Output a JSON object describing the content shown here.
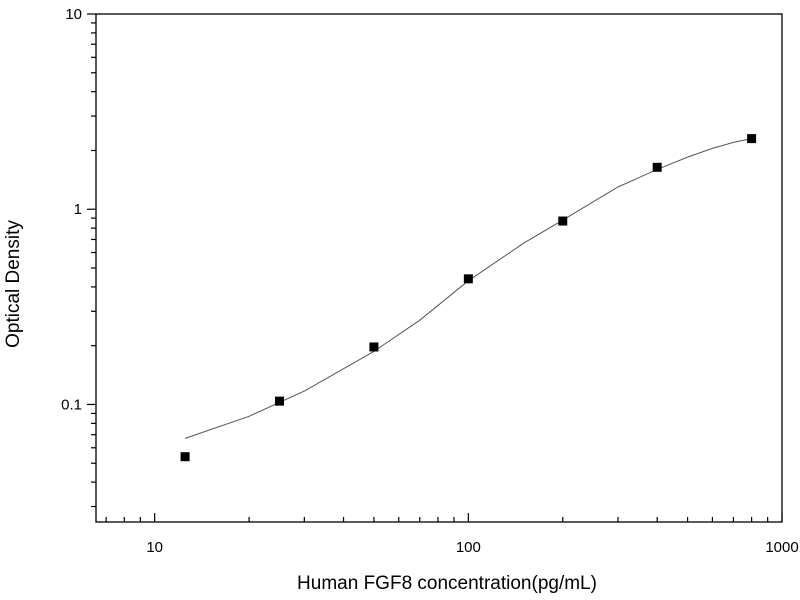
{
  "chart_data": {
    "type": "scatter",
    "title": "",
    "xlabel": "Human FGF8 concentration(pg/mL)",
    "ylabel": "Optical Density",
    "x_scale": "log",
    "y_scale": "log",
    "xlim": [
      6.5,
      1000
    ],
    "ylim": [
      0.025,
      10
    ],
    "grid": false,
    "legend": "none",
    "x_ticks": [
      {
        "value": 10,
        "label": "10"
      },
      {
        "value": 100,
        "label": "100"
      },
      {
        "value": 1000,
        "label": "1000"
      }
    ],
    "y_ticks": [
      {
        "value": 0.1,
        "label": "0.1"
      },
      {
        "value": 1,
        "label": "1"
      },
      {
        "value": 10,
        "label": "10"
      }
    ],
    "series": [
      {
        "marker": "square",
        "color": "#000000",
        "points": [
          {
            "x": 12.5,
            "y": 0.054
          },
          {
            "x": 25,
            "y": 0.104
          },
          {
            "x": 50,
            "y": 0.197
          },
          {
            "x": 100,
            "y": 0.44
          },
          {
            "x": 200,
            "y": 0.87
          },
          {
            "x": 400,
            "y": 1.64
          },
          {
            "x": 800,
            "y": 2.3
          }
        ]
      }
    ],
    "fit_curve": {
      "color": "#555555",
      "points": [
        {
          "x": 12.5,
          "y": 0.067
        },
        {
          "x": 20,
          "y": 0.087
        },
        {
          "x": 30,
          "y": 0.117
        },
        {
          "x": 50,
          "y": 0.187
        },
        {
          "x": 70,
          "y": 0.27
        },
        {
          "x": 100,
          "y": 0.43
        },
        {
          "x": 150,
          "y": 0.67
        },
        {
          "x": 200,
          "y": 0.88
        },
        {
          "x": 300,
          "y": 1.3
        },
        {
          "x": 400,
          "y": 1.6
        },
        {
          "x": 500,
          "y": 1.85
        },
        {
          "x": 600,
          "y": 2.05
        },
        {
          "x": 700,
          "y": 2.2
        },
        {
          "x": 800,
          "y": 2.3
        }
      ]
    }
  }
}
